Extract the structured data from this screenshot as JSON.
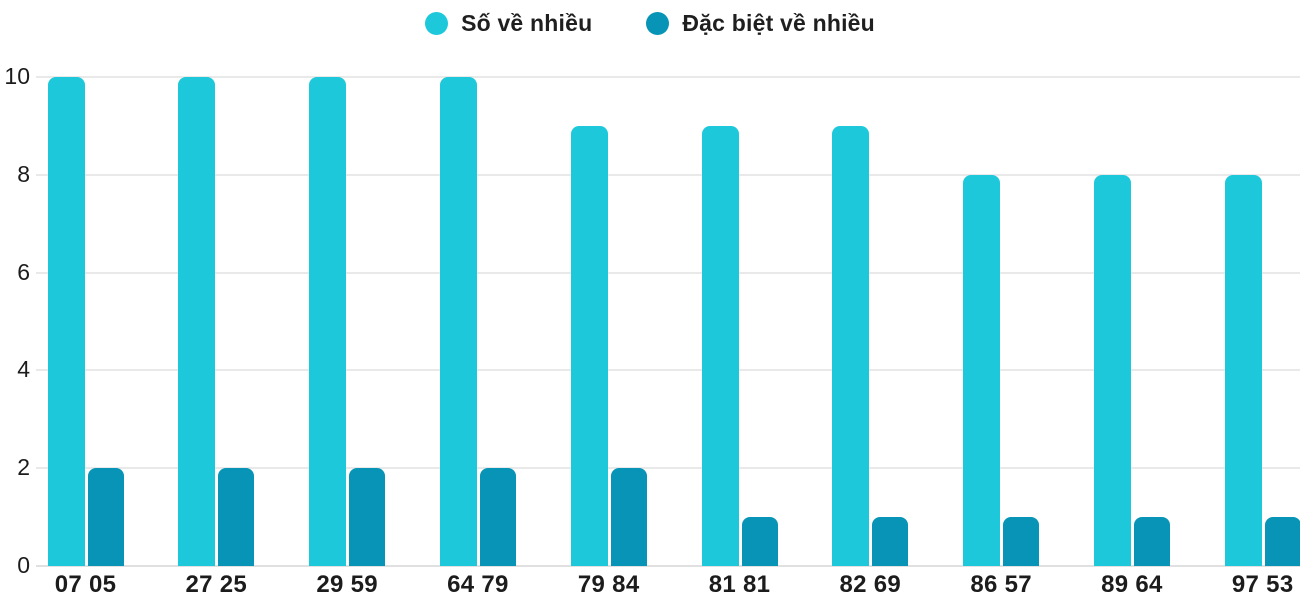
{
  "legend": {
    "items": [
      {
        "label": "Số về nhiều",
        "color": "#1EC8DB"
      },
      {
        "label": "Đặc biệt về nhiều",
        "color": "#0894B6"
      }
    ]
  },
  "chart_data": {
    "type": "bar",
    "title": "",
    "xlabel": "",
    "ylabel": "",
    "categories": [
      "07 05",
      "27 25",
      "29 59",
      "64 79",
      "79 84",
      "81 81",
      "82 69",
      "86 57",
      "89 64",
      "97 53"
    ],
    "series": [
      {
        "name": "Số về nhiều",
        "color": "#1EC8DB",
        "values": [
          10,
          10,
          10,
          10,
          9,
          9,
          9,
          8,
          8,
          8
        ]
      },
      {
        "name": "Đặc biệt về nhiều",
        "color": "#0894B6",
        "values": [
          2,
          2,
          2,
          2,
          2,
          1,
          1,
          1,
          1,
          1
        ]
      }
    ],
    "ylim": [
      0,
      10
    ],
    "yticks": [
      0,
      2,
      4,
      6,
      8,
      10
    ],
    "grid": true,
    "legend_position": "top-center"
  },
  "colors": {
    "grid": "#e9e9e9",
    "axis": "#e0e0e0",
    "text": "#1c1c1c",
    "background": "#ffffff"
  }
}
